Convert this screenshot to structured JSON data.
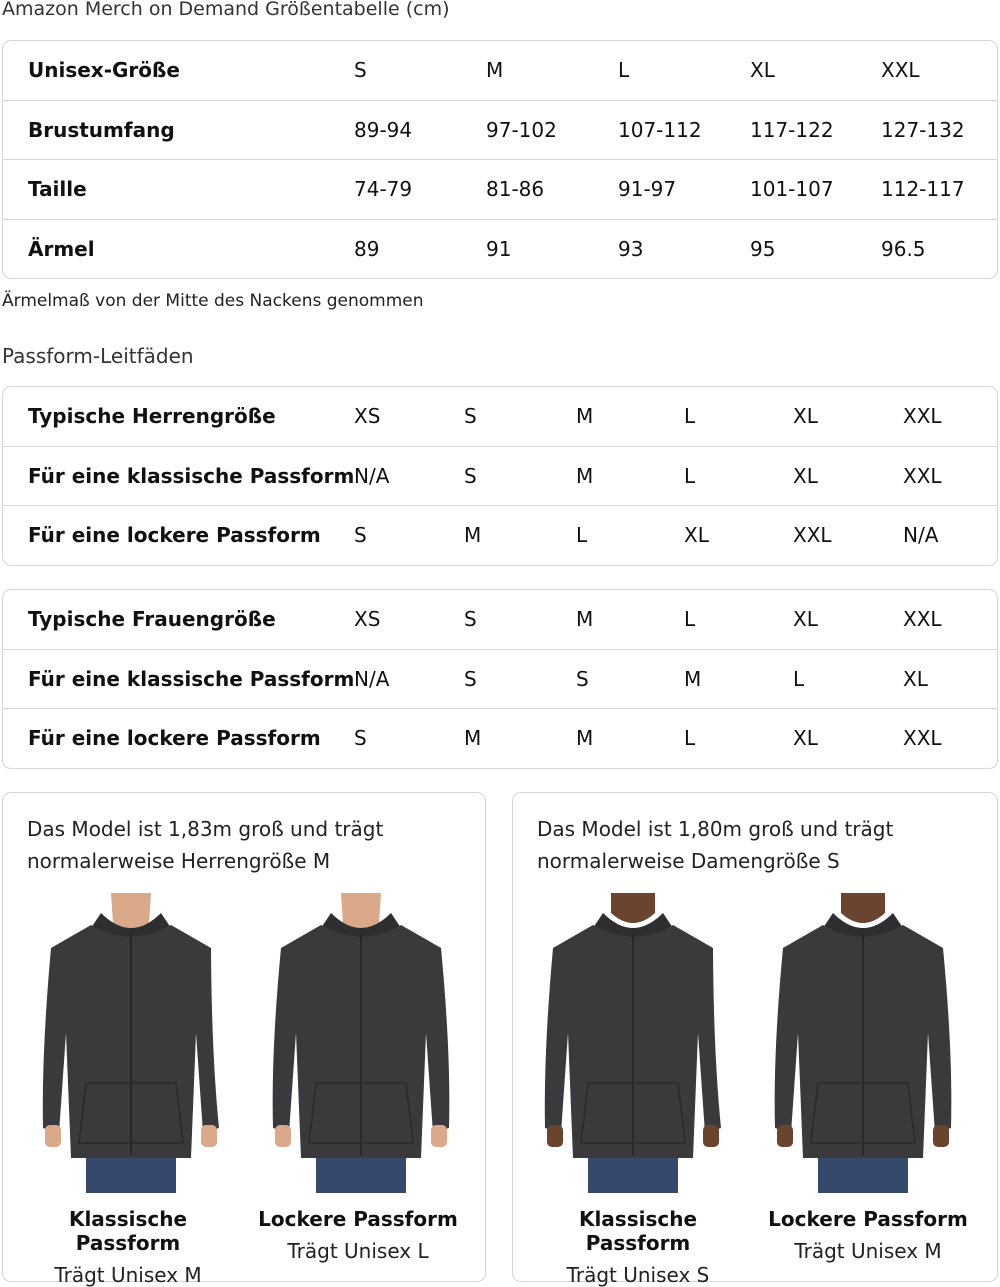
{
  "title": "Amazon Merch on Demand Größentabelle (cm)",
  "size_table": {
    "rows": [
      {
        "label": "Unisex-Größe",
        "values": [
          "S",
          "M",
          "L",
          "XL",
          "XXL"
        ]
      },
      {
        "label": "Brustumfang",
        "values": [
          "89-94",
          "97-102",
          "107-112",
          "117-122",
          "127-132"
        ]
      },
      {
        "label": "Taille",
        "values": [
          "74-79",
          "81-86",
          "91-97",
          "101-107",
          "112-117"
        ]
      },
      {
        "label": "Ärmel",
        "values": [
          "89",
          "91",
          "93",
          "95",
          "96.5"
        ]
      }
    ]
  },
  "note": "Ärmelmaß von der Mitte des Nackens genommen",
  "fit_title": "Passform-Leitfäden",
  "men_table": {
    "rows": [
      {
        "label": "Typische Herrengröße",
        "values": [
          "XS",
          "S",
          "M",
          "L",
          "XL",
          "XXL"
        ]
      },
      {
        "label": "Für eine klassische Passform",
        "values": [
          "N/A",
          "S",
          "M",
          "L",
          "XL",
          "XXL"
        ]
      },
      {
        "label": "Für eine lockere Passform",
        "values": [
          "S",
          "M",
          "L",
          "XL",
          "XXL",
          "N/A"
        ]
      }
    ]
  },
  "women_table": {
    "rows": [
      {
        "label": "Typische Frauengröße",
        "values": [
          "XS",
          "S",
          "M",
          "L",
          "XL",
          "XXL"
        ]
      },
      {
        "label": "Für eine klassische Passform",
        "values": [
          "N/A",
          "S",
          "S",
          "M",
          "L",
          "XL"
        ]
      },
      {
        "label": "Für eine lockere Passform",
        "values": [
          "S",
          "M",
          "M",
          "L",
          "XL",
          "XXL"
        ]
      }
    ]
  },
  "cards": [
    {
      "text_line1": "Das Model ist 1,83m groß und trägt",
      "text_line2": "normalerweise Herrengröße M",
      "figures": [
        {
          "caption": "Klassische Passform",
          "sub": "Trägt Unisex M",
          "skin": "#d9a98a"
        },
        {
          "caption": "Lockere Passform",
          "sub": "Trägt Unisex L",
          "skin": "#d9a98a"
        }
      ]
    },
    {
      "text_line1": "Das Model ist 1,80m groß und trägt",
      "text_line2": "normalerweise Damengröße S",
      "figures": [
        {
          "caption": "Klassische Passform",
          "sub": "Trägt Unisex S",
          "skin": "#6b4430"
        },
        {
          "caption": "Lockere Passform",
          "sub": "Trägt Unisex M",
          "skin": "#6b4430"
        }
      ]
    }
  ],
  "colors": {
    "hoodie": "#3a3a3c",
    "jeans": "#34496b",
    "border": "#d5d5d5"
  }
}
